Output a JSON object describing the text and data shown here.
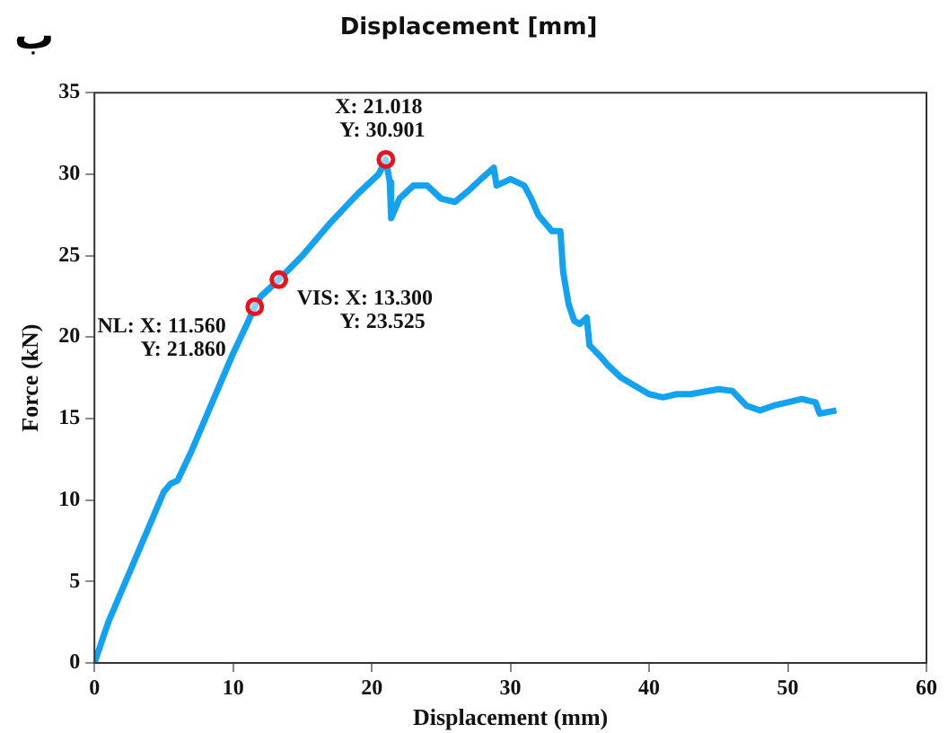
{
  "chart_data": {
    "type": "line",
    "title": "Displacement [mm]",
    "xlabel": "Displacement (mm)",
    "ylabel": "Force (kN)",
    "xlim": [
      0,
      60
    ],
    "xticks": [
      0,
      10,
      20,
      30,
      40,
      50,
      60
    ],
    "ylim": [
      0,
      35
    ],
    "yticks": [
      0,
      5,
      10,
      15,
      20,
      25,
      30,
      35
    ],
    "grid": false,
    "legend": false,
    "series": [
      {
        "color": "#12a2f2",
        "marker": "none",
        "x": [
          0,
          1,
          2,
          3,
          4,
          5,
          5.5,
          6,
          7,
          8,
          9,
          10,
          11,
          11.56,
          12,
          13.3,
          15,
          17,
          19,
          20.5,
          21.018,
          21.3,
          21.4,
          22,
          23,
          24,
          25,
          26,
          27,
          28,
          28.8,
          29,
          30,
          31,
          31.5,
          32,
          33,
          33.6,
          33.8,
          34.2,
          34.6,
          35,
          35.5,
          35.7,
          36.5,
          37,
          38,
          39,
          40,
          41,
          42,
          43,
          45,
          46,
          47,
          48,
          49,
          50,
          51,
          52,
          52.3,
          53.5
        ],
        "values": [
          0,
          2.5,
          4.5,
          6.5,
          8.5,
          10.5,
          11,
          11.2,
          13,
          15,
          17,
          19,
          20.8,
          21.86,
          22.5,
          23.525,
          25,
          27,
          28.8,
          30,
          30.901,
          29.5,
          27.3,
          28.5,
          29.3,
          29.3,
          28.5,
          28.3,
          29,
          29.8,
          30.4,
          29.3,
          29.7,
          29.3,
          28.5,
          27.5,
          26.5,
          26.5,
          24,
          22,
          21,
          20.8,
          21.2,
          19.5,
          18.8,
          18.3,
          17.5,
          17,
          16.5,
          16.3,
          16.5,
          16.5,
          16.8,
          16.7,
          15.8,
          15.5,
          15.8,
          16,
          16.2,
          16,
          15.3,
          15.5
        ]
      },
      {
        "type": "scatter",
        "color": "#e8141c",
        "marker": "circle",
        "x": [
          11.56,
          13.3,
          21.018
        ],
        "values": [
          21.86,
          23.525,
          30.901
        ]
      }
    ],
    "annotations": [
      "ب",
      {
        "text": "NL: X: 11.560\nY: 21.860",
        "x": 11.56,
        "y": 21.86
      },
      {
        "text": "VIS: X: 13.300\nY: 23.525",
        "x": 13.3,
        "y": 23.525
      },
      {
        "text": "X: 21.018\nY: 30.901",
        "x": 21.018,
        "y": 30.901
      }
    ]
  }
}
